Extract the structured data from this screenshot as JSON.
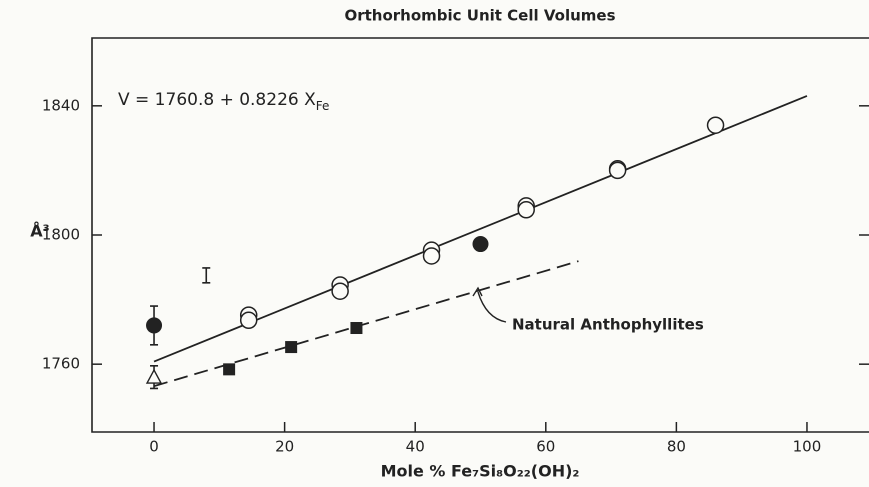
{
  "chart_data": {
    "type": "scatter",
    "title": "Orthorhombic Unit Cell Volumes",
    "xlabel": "Mole % Fe₇Si₈O₂₂(OH)₂",
    "ylabel": "Å³",
    "equation": {
      "text": "V = 1760.8 + 0.8226 X",
      "sub": "Fe"
    },
    "annotation": "Natural Anthophyllites",
    "xlim": [
      -9.5,
      109.5
    ],
    "ylim": [
      1739,
      1861
    ],
    "xticks": [
      0,
      20,
      40,
      60,
      80,
      100
    ],
    "yticks": [
      1760,
      1800,
      1840
    ],
    "series": [
      {
        "marker": "open-circle",
        "color": "#222222",
        "x": [
          14.5,
          14.5,
          28.5,
          28.5,
          42.5,
          42.5,
          57,
          57,
          71,
          71,
          86
        ],
        "values": [
          1775.2,
          1773.6,
          1784.5,
          1782.6,
          1795.3,
          1793.5,
          1809,
          1807.8,
          1820.5,
          1820,
          1834
        ]
      },
      {
        "marker": "filled-circle",
        "color": "#222222",
        "x": [
          0,
          50
        ],
        "values": [
          1772,
          1797.2
        ],
        "errors": [
          6,
          0
        ]
      },
      {
        "marker": "filled-square",
        "color": "#222222",
        "x": [
          11.5,
          21,
          31
        ],
        "values": [
          1758.4,
          1765.3,
          1771.2
        ]
      },
      {
        "marker": "open-triangle",
        "color": "#222222",
        "x": [
          0
        ],
        "values": [
          1756
        ],
        "errors": [
          3.5
        ]
      },
      {
        "marker": "none",
        "color": "#222222",
        "x": [
          8
        ],
        "values": [
          1787.5
        ],
        "errors": [
          2.3
        ]
      }
    ],
    "lines": [
      {
        "style": "solid",
        "color": "#222222",
        "x": [
          0,
          100
        ],
        "values": [
          1760.8,
          1843.06
        ]
      },
      {
        "style": "dashed",
        "color": "#222222",
        "x": [
          0,
          65
        ],
        "values": [
          1753.2,
          1791.9
        ]
      }
    ]
  }
}
